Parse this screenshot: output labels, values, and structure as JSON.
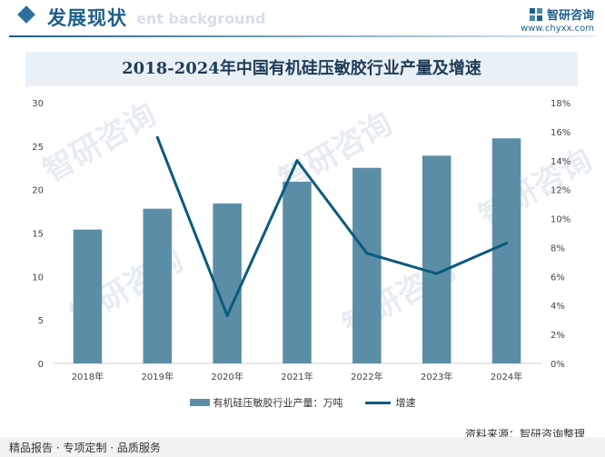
{
  "header": {
    "title": "发展现状",
    "ghost_text": "ent background",
    "brand_name": "智研咨询",
    "brand_url": "www.chyxx.com"
  },
  "watermark_text": "智研咨询",
  "colors": {
    "bar": "#5b8ea6",
    "line": "#0b5a7d",
    "accent": "#1f5f8c"
  },
  "chart_data": {
    "type": "bar",
    "title": "2018-2024年中国有机硅压敏胶行业产量及增速",
    "categories": [
      "2018年",
      "2019年",
      "2020年",
      "2021年",
      "2022年",
      "2023年",
      "2024年"
    ],
    "series": [
      {
        "name": "有机硅压敏胶行业产量：万吨",
        "type": "bar",
        "axis": "left",
        "values": [
          15.4,
          17.8,
          18.4,
          20.9,
          22.5,
          23.9,
          25.9
        ]
      },
      {
        "name": "增速",
        "type": "line",
        "axis": "right",
        "values": [
          null,
          15.6,
          3.3,
          14.0,
          7.6,
          6.2,
          8.3
        ]
      }
    ],
    "y_left": {
      "min": 0,
      "max": 30,
      "ticks": [
        "0",
        "5",
        "10",
        "15",
        "20",
        "25",
        "30"
      ]
    },
    "y_right": {
      "min": 0,
      "max": 18,
      "ticks": [
        "0%",
        "2%",
        "4%",
        "6%",
        "8%",
        "10%",
        "12%",
        "14%",
        "16%",
        "18%"
      ]
    },
    "legend_position": "bottom",
    "grid": false
  },
  "footer": {
    "left_text": "精品报告 · 专项定制 · 品质服务",
    "source": "资料来源：智研咨询整理"
  }
}
